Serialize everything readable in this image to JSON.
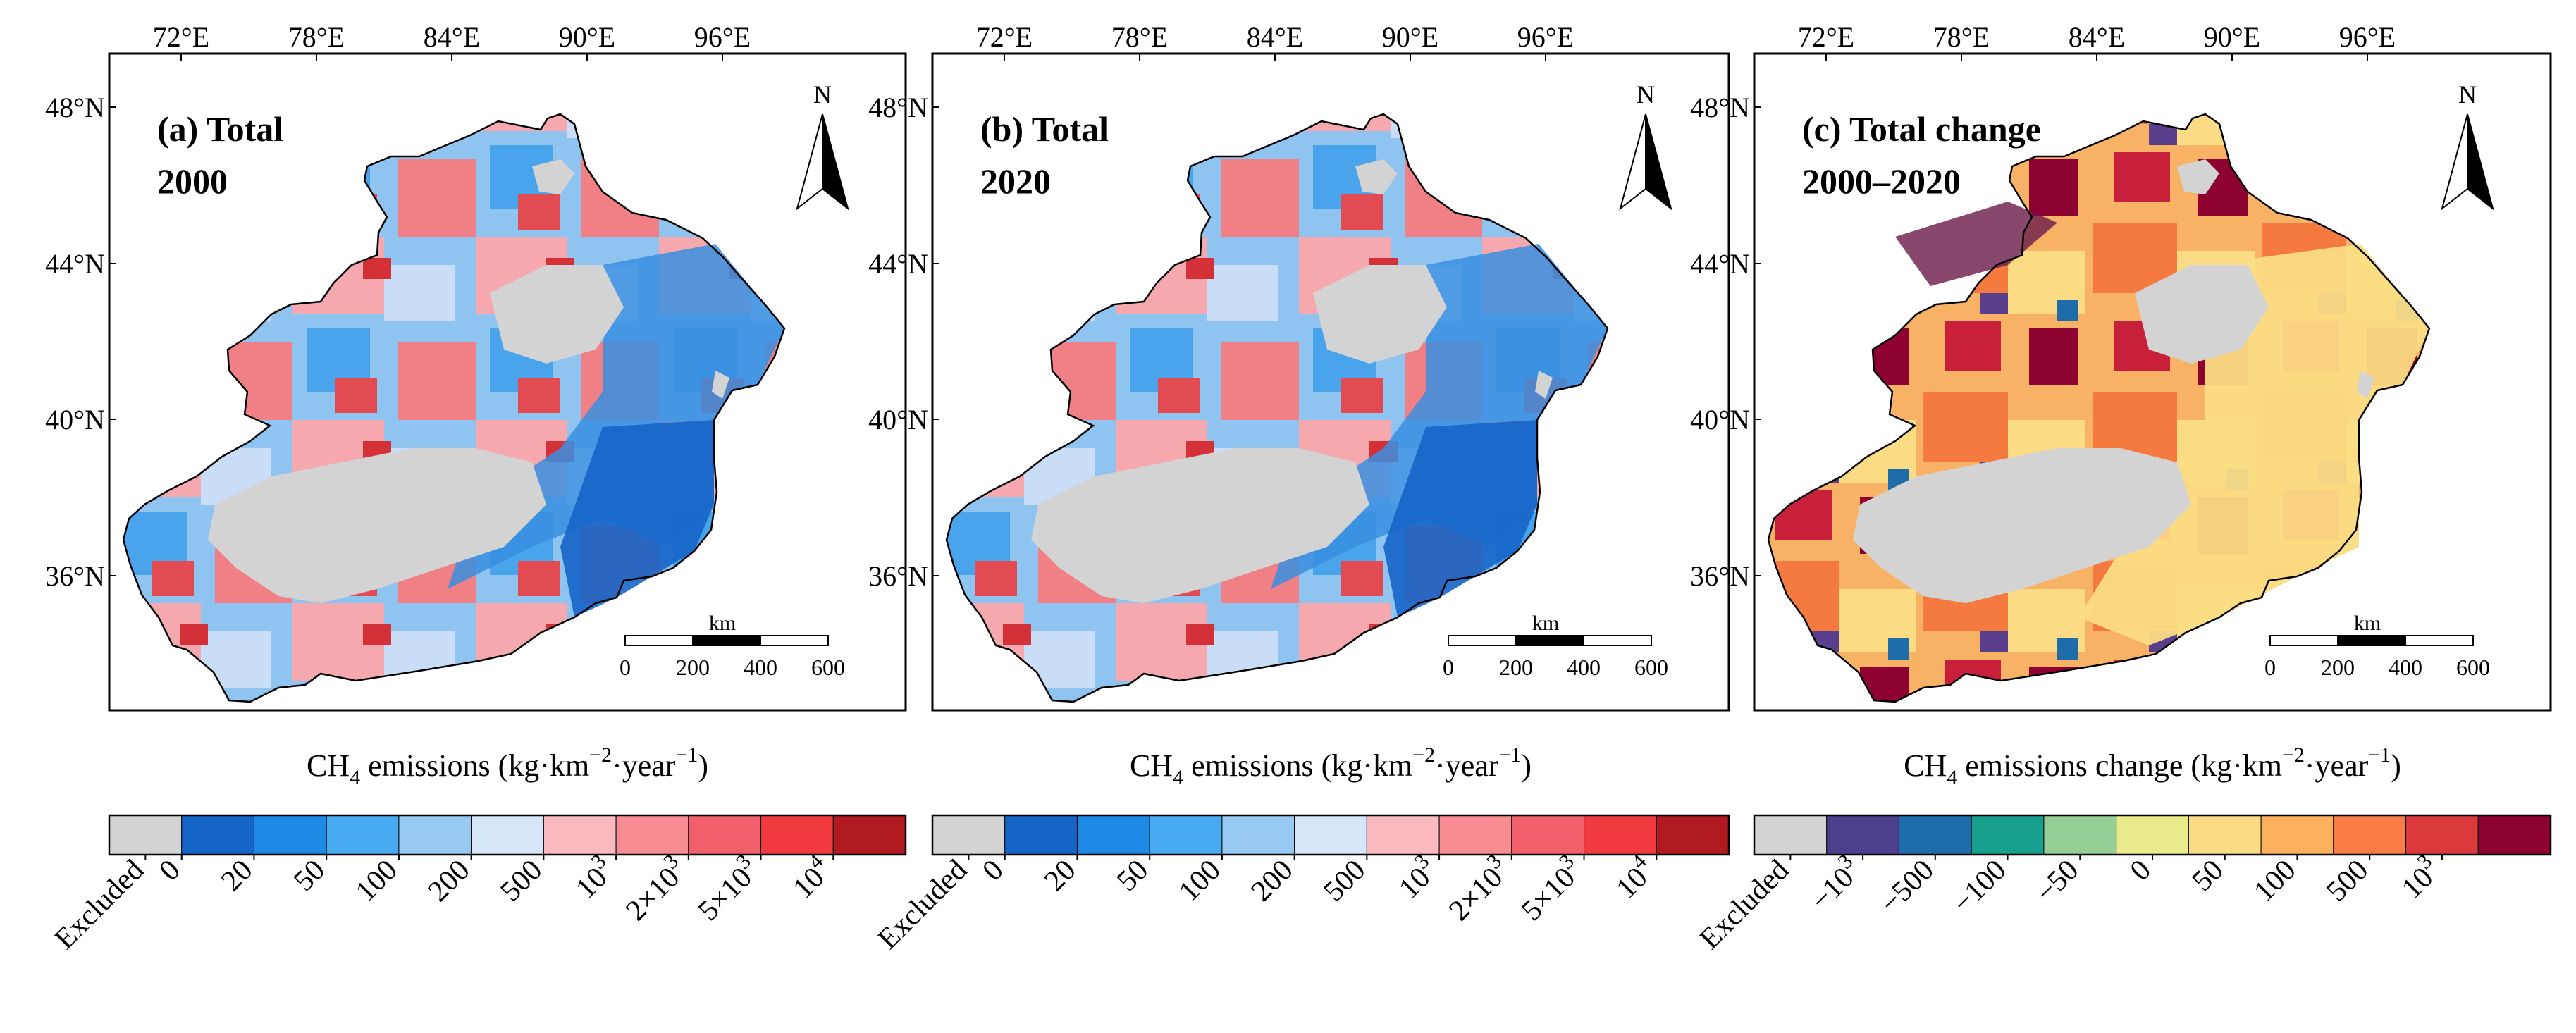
{
  "figure": {
    "panels": [
      {
        "id": "a",
        "title_line1": "(a) Total",
        "title_line2": "2000",
        "palette": "emissions",
        "legend_label_main": "CH",
        "legend_label_sub": "4",
        "legend_label_rest": " emissions (kg·km",
        "legend_label_exp1": "−2",
        "legend_label_mid": "·year",
        "legend_label_exp2": "−1",
        "legend_label_end": ")"
      },
      {
        "id": "b",
        "title_line1": "(b) Total",
        "title_line2": "2020",
        "palette": "emissions",
        "legend_label_main": "CH",
        "legend_label_sub": "4",
        "legend_label_rest": " emissions (kg·km",
        "legend_label_exp1": "−2",
        "legend_label_mid": "·year",
        "legend_label_exp2": "−1",
        "legend_label_end": ")"
      },
      {
        "id": "c",
        "title_line1": "(c) Total change",
        "title_line2": "2000–2020",
        "palette": "change",
        "legend_label_main": "CH",
        "legend_label_sub": "4",
        "legend_label_rest": " emissions change (kg·km",
        "legend_label_exp1": "−2",
        "legend_label_mid": "·year",
        "legend_label_exp2": "−1",
        "legend_label_end": ")"
      }
    ],
    "lon_ticks": [
      "72°E",
      "78°E",
      "84°E",
      "90°E",
      "96°E"
    ],
    "lat_ticks": [
      "48°N",
      "44°N",
      "40°N",
      "36°N"
    ],
    "north_label": "N",
    "scalebar": {
      "unit": "km",
      "ticks": [
        "0",
        "200",
        "400",
        "600"
      ]
    },
    "legends": {
      "emissions": {
        "colors": [
          "#d3d3d3",
          "#1565c8",
          "#1e8ae6",
          "#48aaf0",
          "#98c9f2",
          "#d4e6f8",
          "#f9b9bf",
          "#f78c93",
          "#f1606a",
          "#f03a40",
          "#b11a1f"
        ],
        "labels": [
          "Excluded",
          "0",
          "20",
          "50",
          "100",
          "200",
          "500",
          "10^3",
          "2×10^3",
          "5×10^3",
          "10^4"
        ]
      },
      "change": {
        "colors": [
          "#d3d3d3",
          "#4e3f8c",
          "#1f6cab",
          "#17a08e",
          "#96cf96",
          "#e9ea8b",
          "#fbdc84",
          "#fbb05e",
          "#f87c43",
          "#db3a3c",
          "#8e0231"
        ],
        "labels": [
          "Excluded",
          "−10^3",
          "−500",
          "−100",
          "−50",
          "0",
          "50",
          "100",
          "500",
          "10^3"
        ]
      }
    }
  }
}
